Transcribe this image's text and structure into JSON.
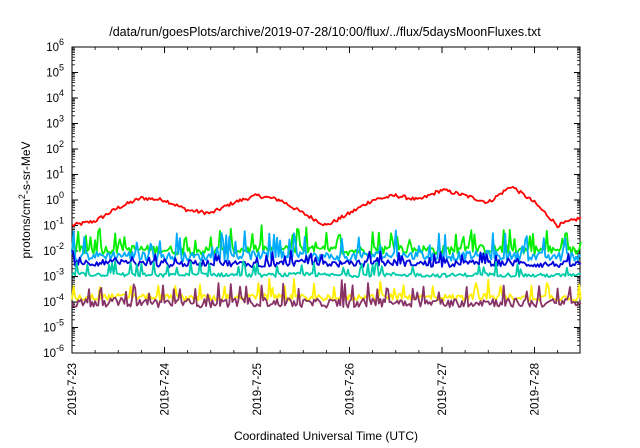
{
  "chart_data": {
    "type": "line",
    "title": "/data/run/goesPlots/archive/2019-07-28/10:00/flux/../flux/5daysMoonFluxes.txt",
    "xlabel": "Coordinated Universal Time (UTC)",
    "ylabel_parts": {
      "base": "protons/cm",
      "sup": "2",
      "rest": "-s-sr-MeV"
    },
    "yscale": "log",
    "ylim": [
      1e-06,
      1000000.0
    ],
    "xlim": [
      "2019-07-23 00:00",
      "2019-07-28 12:00"
    ],
    "x_tick_labels": [
      "2019-7-23",
      "2019-7-24",
      "2019-7-25",
      "2019-7-26",
      "2019-7-27",
      "2019-7-28"
    ],
    "y_tick_labels": [
      {
        "base": "10",
        "exp": "6"
      },
      {
        "base": "10",
        "exp": "5"
      },
      {
        "base": "10",
        "exp": "4"
      },
      {
        "base": "10",
        "exp": "3"
      },
      {
        "base": "10",
        "exp": "2"
      },
      {
        "base": "10",
        "exp": "1"
      },
      {
        "base": "10",
        "exp": "0"
      },
      {
        "base": "10",
        "exp": "-1"
      },
      {
        "base": "10",
        "exp": "-2"
      },
      {
        "base": "10",
        "exp": "-3"
      },
      {
        "base": "10",
        "exp": "-4"
      },
      {
        "base": "10",
        "exp": "-5"
      },
      {
        "base": "10",
        "exp": "-6"
      }
    ],
    "grid": false,
    "series": [
      {
        "color": "#ff0000",
        "x_days": [
          0,
          0.25,
          0.5,
          0.75,
          1,
          1.25,
          1.5,
          1.75,
          2,
          2.25,
          2.5,
          2.75,
          3,
          3.25,
          3.5,
          3.75,
          4,
          4.25,
          4.5,
          4.75,
          5,
          5.25,
          5.5
        ],
        "values": [
          0.1,
          0.15,
          0.5,
          1.2,
          1.0,
          0.4,
          0.3,
          0.8,
          1.5,
          1.0,
          0.3,
          0.1,
          0.3,
          1.0,
          1.5,
          1.0,
          2.5,
          1.5,
          0.8,
          3.5,
          0.8,
          0.1,
          0.2
        ]
      },
      {
        "color": "#00ee00",
        "x_days": [
          0,
          0.5,
          1,
          1.5,
          2,
          2.5,
          3,
          3.5,
          4,
          4.5,
          5,
          5.5
        ],
        "values": [
          0.01,
          0.012,
          0.011,
          0.01,
          0.012,
          0.011,
          0.01,
          0.012,
          0.011,
          0.012,
          0.011,
          0.01
        ]
      },
      {
        "color": "#00aaff",
        "x_days": [
          0,
          0.5,
          1,
          1.5,
          2,
          2.5,
          3,
          3.5,
          4,
          4.5,
          5,
          5.5
        ],
        "values": [
          0.006,
          0.007,
          0.006,
          0.006,
          0.007,
          0.006,
          0.006,
          0.007,
          0.006,
          0.007,
          0.006,
          0.006
        ]
      },
      {
        "color": "#0000dd",
        "x_days": [
          0,
          0.5,
          1,
          1.5,
          2,
          2.5,
          3,
          3.5,
          4,
          4.5,
          5,
          5.5
        ],
        "values": [
          0.0035,
          0.0035,
          0.003,
          0.0035,
          0.003,
          0.0035,
          0.003,
          0.0035,
          0.003,
          0.0035,
          0.003,
          0.003
        ]
      },
      {
        "color": "#00ccaa",
        "x_days": [
          0,
          0.5,
          1,
          1.5,
          2,
          2.5,
          3,
          3.5,
          4,
          4.5,
          5,
          5.5
        ],
        "values": [
          0.0012,
          0.0012,
          0.0011,
          0.0012,
          0.0011,
          0.0012,
          0.0011,
          0.0012,
          0.0011,
          0.0012,
          0.0011,
          0.0011
        ]
      },
      {
        "color": "#ffee00",
        "x_days": [
          0,
          0.5,
          1,
          1.5,
          2,
          2.5,
          3,
          3.5,
          4,
          4.5,
          5,
          5.5
        ],
        "values": [
          0.00015,
          0.00016,
          0.00015,
          0.00015,
          0.00016,
          0.00015,
          0.00015,
          0.00016,
          0.00015,
          0.00016,
          0.00015,
          0.00015
        ]
      },
      {
        "color": "#883366",
        "x_days": [
          0,
          0.5,
          1,
          1.5,
          2,
          2.5,
          3,
          3.5,
          4,
          4.5,
          5,
          5.5
        ],
        "values": [
          9e-05,
          0.0001,
          9e-05,
          9e-05,
          0.0001,
          9e-05,
          9e-05,
          0.0001,
          9e-05,
          0.0001,
          9e-05,
          9e-05
        ]
      }
    ]
  }
}
